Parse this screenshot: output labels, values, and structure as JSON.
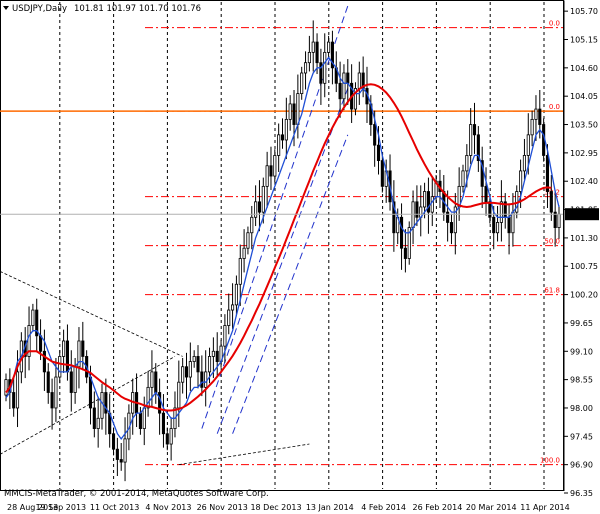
{
  "window": {
    "symbol_timeframe": "USDJPY,Daily",
    "ohlc": "101.81 101.97 101.70 101.76",
    "copyright": "MMCIS-MetaTrader, © 2001-2014, MetaQuotes Software Corp."
  },
  "colors": {
    "background": "#ffffff",
    "candle": "#000000",
    "fast_ma": "#1f4fd6",
    "slow_ma": "#e60000",
    "fibo": "#ff0000",
    "channel": "#2233cc",
    "pitchfork": "#000000",
    "price_line": "#b0b0b0",
    "badge": "#000000"
  },
  "chart_data": {
    "type": "candlestick",
    "title": "USDJPY,Daily",
    "ylim": [
      96.35,
      105.8
    ],
    "grid": {
      "vertical": true,
      "horizontal": false
    },
    "y_ticks": [
      "105.70",
      "105.15",
      "104.60",
      "104.05",
      "103.50",
      "102.95",
      "102.40",
      "101.85",
      "101.30",
      "100.75",
      "100.20",
      "99.65",
      "99.10",
      "98.55",
      "98.00",
      "97.45",
      "96.90",
      "96.35"
    ],
    "x_ticks": [
      "28 Aug 2013",
      "19 Sep 2013",
      "11 Oct 2013",
      "4 Nov 2013",
      "26 Nov 2013",
      "18 Dec 2013",
      "13 Jan 2014",
      "4 Feb 2014",
      "26 Feb 2014",
      "20 Mar 2014",
      "11 Apr 2014"
    ],
    "current_price": "101.76",
    "fibonacci": [
      {
        "label": "0.0",
        "value": 105.38
      },
      {
        "label": "0.0",
        "value": 103.76
      },
      {
        "label": "38.2",
        "value": 102.1
      },
      {
        "label": "50.0",
        "value": 101.15
      },
      {
        "label": "61.8",
        "value": 100.2
      },
      {
        "label": "100.0",
        "value": 96.9
      }
    ],
    "horizontal_level": 103.76,
    "close": [
      98.55,
      98.3,
      98.0,
      98.7,
      99.3,
      99.0,
      99.6,
      99.9,
      99.4,
      99.1,
      98.7,
      98.3,
      98.0,
      98.6,
      99.0,
      99.3,
      98.7,
      98.3,
      98.8,
      99.3,
      99.0,
      98.6,
      98.0,
      97.6,
      97.8,
      98.3,
      97.9,
      97.5,
      97.2,
      97.0,
      96.95,
      97.4,
      97.9,
      98.3,
      97.9,
      97.6,
      98.0,
      98.4,
      98.7,
      98.3,
      97.9,
      97.5,
      97.3,
      97.6,
      98.0,
      98.5,
      98.8,
      98.6,
      98.9,
      99.0,
      98.7,
      98.4,
      98.7,
      99.0,
      99.1,
      98.9,
      99.2,
      99.6,
      99.9,
      100.0,
      100.4,
      100.9,
      101.1,
      101.4,
      101.7,
      102.0,
      101.8,
      102.3,
      102.7,
      102.5,
      102.9,
      103.3,
      103.2,
      103.6,
      103.9,
      103.5,
      104.1,
      104.5,
      104.7,
      104.9,
      105.1,
      104.7,
      104.3,
      104.9,
      105.1,
      104.6,
      104.3,
      104.0,
      104.5,
      104.3,
      103.8,
      104.2,
      104.5,
      104.2,
      103.9,
      103.5,
      103.1,
      102.8,
      102.3,
      102.6,
      102.0,
      101.4,
      101.7,
      101.1,
      100.9,
      101.5,
      102.0,
      101.7,
      101.9,
      102.2,
      101.8,
      102.1,
      102.4,
      102.2,
      101.8,
      101.6,
      101.4,
      101.9,
      102.3,
      102.6,
      102.9,
      103.5,
      103.3,
      102.8,
      102.3,
      102.0,
      101.7,
      101.4,
      101.6,
      102.0,
      101.7,
      101.4,
      101.8,
      102.2,
      102.6,
      102.9,
      103.3,
      103.6,
      103.8,
      103.5,
      102.9,
      102.2,
      101.8,
      101.5,
      101.76
    ],
    "fast_ma": [
      98.2,
      98.3,
      98.6,
      98.9,
      99.0,
      99.2,
      99.4,
      99.5,
      99.5,
      99.4,
      99.3,
      99.1,
      98.9,
      98.8,
      98.7,
      98.7,
      98.7,
      98.8,
      98.8,
      98.9,
      98.9,
      98.8,
      98.6,
      98.4,
      98.2,
      98.1,
      98.0,
      97.9,
      97.7,
      97.5,
      97.4,
      97.5,
      97.6,
      97.8,
      97.9,
      97.9,
      98.0,
      98.1,
      98.2,
      98.3,
      98.2,
      98.0,
      97.9,
      97.8,
      97.8,
      97.9,
      98.0,
      98.1,
      98.3,
      98.4,
      98.4,
      98.5,
      98.5,
      98.6,
      98.7,
      98.8,
      98.9,
      99.1,
      99.3,
      99.5,
      99.8,
      100.1,
      100.4,
      100.7,
      101.0,
      101.3,
      101.5,
      101.7,
      101.9,
      102.1,
      102.3,
      102.5,
      102.7,
      102.9,
      103.1,
      103.3,
      103.5,
      103.7,
      104.0,
      104.3,
      104.5,
      104.6,
      104.6,
      104.7,
      104.8,
      104.7,
      104.6,
      104.4,
      104.3,
      104.3,
      104.2,
      104.1,
      104.1,
      104.2,
      104.1,
      103.9,
      103.6,
      103.3,
      102.9,
      102.6,
      102.3,
      101.9,
      101.7,
      101.5,
      101.4,
      101.4,
      101.5,
      101.6,
      101.7,
      101.8,
      101.9,
      102.0,
      102.1,
      102.1,
      102.0,
      101.9,
      101.8,
      101.8,
      101.9,
      102.1,
      102.4,
      102.7,
      102.9,
      102.9,
      102.7,
      102.4,
      102.1,
      101.8,
      101.7,
      101.7,
      101.7,
      101.7,
      101.8,
      101.9,
      102.1,
      102.4,
      102.7,
      103.0,
      103.3,
      103.4,
      103.3,
      103.0,
      102.6,
      102.2,
      101.9
    ],
    "slow_ma": [
      98.3,
      98.4,
      98.6,
      98.8,
      98.95,
      99.05,
      99.1,
      99.1,
      99.1,
      99.05,
      99.0,
      98.95,
      98.9,
      98.88,
      98.86,
      98.85,
      98.84,
      98.83,
      98.8,
      98.78,
      98.75,
      98.72,
      98.68,
      98.62,
      98.56,
      98.5,
      98.45,
      98.4,
      98.34,
      98.28,
      98.22,
      98.18,
      98.15,
      98.12,
      98.1,
      98.08,
      98.05,
      98.03,
      98.02,
      98.0,
      97.98,
      97.96,
      97.95,
      97.95,
      97.96,
      97.98,
      98.01,
      98.05,
      98.1,
      98.16,
      98.22,
      98.29,
      98.36,
      98.44,
      98.52,
      98.61,
      98.7,
      98.8,
      98.9,
      99.01,
      99.13,
      99.26,
      99.4,
      99.55,
      99.7,
      99.86,
      100.02,
      100.19,
      100.36,
      100.54,
      100.72,
      100.9,
      101.08,
      101.27,
      101.46,
      101.65,
      101.84,
      102.03,
      102.22,
      102.41,
      102.6,
      102.78,
      102.96,
      103.13,
      103.29,
      103.44,
      103.58,
      103.71,
      103.83,
      103.94,
      104.04,
      104.12,
      104.19,
      104.24,
      104.27,
      104.28,
      104.27,
      104.24,
      104.19,
      104.12,
      104.03,
      103.92,
      103.8,
      103.66,
      103.5,
      103.34,
      103.18,
      103.02,
      102.87,
      102.73,
      102.6,
      102.48,
      102.37,
      102.27,
      102.18,
      102.1,
      102.03,
      101.97,
      101.93,
      101.91,
      101.9,
      101.91,
      101.93,
      101.95,
      101.97,
      101.98,
      101.98,
      101.98,
      101.97,
      101.96,
      101.95,
      101.95,
      101.96,
      101.98,
      102.01,
      102.05,
      102.1,
      102.15,
      102.2,
      102.24,
      102.27,
      102.28,
      102.27
    ]
  }
}
